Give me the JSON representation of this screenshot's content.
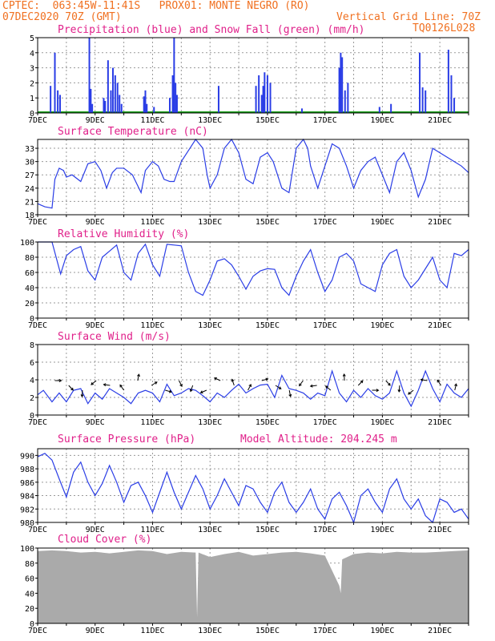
{
  "header": {
    "line1": "CPTEC:  063:45W-11:41S   PROX01: MONTE NEGRO (RO)",
    "line2_left": "07DEC2020 70Z (GMT)",
    "line2_right": "Vertical Grid Line: 70Z",
    "line3_right": "TQ0126L028"
  },
  "x_labels": [
    "7DEC",
    "9DEC",
    "11DEC",
    "13DEC",
    "15DEC",
    "17DEC",
    "19DEC",
    "21DEC"
  ],
  "chart_data": [
    {
      "type": "bar",
      "title": "Precipitation (blue) and Snow Fall (green) (mm/h)",
      "ylim": [
        0,
        5
      ],
      "yticks": [
        "0",
        "1",
        "2",
        "3",
        "4",
        "5"
      ],
      "colors": {
        "rain": "#2a3de6",
        "snow": "#18a018"
      },
      "series": [
        {
          "name": "Precipitation",
          "color": "#2a3de6",
          "points": [
            [
              0.45,
              1.8
            ],
            [
              0.6,
              4.0
            ],
            [
              0.7,
              1.5
            ],
            [
              0.78,
              1.2
            ],
            [
              1.8,
              5.0
            ],
            [
              1.85,
              1.6
            ],
            [
              1.9,
              0.6
            ],
            [
              2.3,
              1.0
            ],
            [
              2.35,
              0.8
            ],
            [
              2.45,
              3.5
            ],
            [
              2.55,
              1.5
            ],
            [
              2.62,
              3.0
            ],
            [
              2.7,
              2.5
            ],
            [
              2.78,
              2.0
            ],
            [
              2.85,
              1.2
            ],
            [
              2.92,
              0.6
            ],
            [
              3.7,
              1.1
            ],
            [
              3.75,
              1.5
            ],
            [
              3.8,
              0.6
            ],
            [
              4.05,
              0.4
            ],
            [
              4.6,
              1.0
            ],
            [
              4.7,
              2.5
            ],
            [
              4.75,
              5.0
            ],
            [
              4.8,
              2.0
            ],
            [
              4.85,
              1.2
            ],
            [
              6.3,
              1.8
            ],
            [
              7.6,
              1.8
            ],
            [
              7.7,
              2.5
            ],
            [
              7.8,
              1.2
            ],
            [
              7.85,
              1.8
            ],
            [
              7.9,
              2.7
            ],
            [
              8.0,
              2.5
            ],
            [
              8.1,
              2.0
            ],
            [
              9.2,
              0.3
            ],
            [
              10.5,
              3.0
            ],
            [
              10.55,
              4.0
            ],
            [
              10.6,
              3.7
            ],
            [
              10.7,
              1.5
            ],
            [
              10.8,
              2.0
            ],
            [
              11.9,
              0.4
            ],
            [
              12.3,
              0.6
            ],
            [
              13.3,
              4.0
            ],
            [
              13.4,
              1.7
            ],
            [
              13.5,
              1.5
            ],
            [
              14.3,
              4.2
            ],
            [
              14.4,
              2.5
            ],
            [
              14.5,
              1.0
            ]
          ]
        },
        {
          "name": "Snow Fall",
          "color": "#18a018",
          "points": []
        }
      ]
    },
    {
      "type": "line",
      "title": "Surface Temperature (nC)",
      "ylim": [
        18,
        35
      ],
      "yticks": [
        "18",
        "21",
        "24",
        "27",
        "30",
        "33"
      ],
      "color": "#2a3de6",
      "x": [
        0,
        0.25,
        0.5,
        0.6,
        0.75,
        0.9,
        1.0,
        1.2,
        1.5,
        1.75,
        2.0,
        2.2,
        2.4,
        2.6,
        2.75,
        3.0,
        3.3,
        3.6,
        3.75,
        4.0,
        4.2,
        4.4,
        4.6,
        4.75,
        5.0,
        5.3,
        5.5,
        5.75,
        5.9,
        6.0,
        6.25,
        6.5,
        6.75,
        7.0,
        7.25,
        7.5,
        7.75,
        8.0,
        8.2,
        8.5,
        8.75,
        9.0,
        9.25,
        9.4,
        9.5,
        9.75,
        10.0,
        10.25,
        10.5,
        10.75,
        11.0,
        11.25,
        11.5,
        11.75,
        12.0,
        12.25,
        12.5,
        12.75,
        13.0,
        13.25,
        13.5,
        13.75,
        14.0,
        14.25,
        14.5,
        14.75,
        15.0
      ],
      "y": [
        20.5,
        19.8,
        19.5,
        26,
        28.5,
        28,
        26.5,
        27,
        25.5,
        29.5,
        30,
        28,
        24,
        27.5,
        28.5,
        28.5,
        27,
        23,
        28,
        30,
        29,
        26,
        25.5,
        25.5,
        30,
        33,
        35,
        33,
        27,
        24,
        27,
        33,
        35,
        32,
        26,
        25,
        31,
        32,
        30,
        24,
        23,
        33,
        35,
        33,
        29,
        24,
        29,
        34,
        33,
        29,
        24,
        28,
        30,
        31,
        27,
        23,
        30,
        32,
        28,
        22,
        26,
        33,
        32,
        31,
        30,
        29,
        27.5
      ]
    },
    {
      "type": "line",
      "title": "Relative Humidity (%)",
      "ylim": [
        0,
        100
      ],
      "yticks": [
        "0",
        "20",
        "40",
        "60",
        "80",
        "100"
      ],
      "color": "#2a3de6",
      "x": [
        0,
        0.5,
        0.8,
        1.0,
        1.25,
        1.5,
        1.75,
        2.0,
        2.25,
        2.5,
        2.75,
        3.0,
        3.25,
        3.5,
        3.75,
        4.0,
        4.25,
        4.5,
        4.75,
        5.0,
        5.25,
        5.5,
        5.75,
        6.0,
        6.25,
        6.5,
        6.75,
        7.0,
        7.25,
        7.5,
        7.75,
        8.0,
        8.25,
        8.5,
        8.75,
        9.0,
        9.25,
        9.5,
        9.75,
        10.0,
        10.25,
        10.5,
        10.75,
        11.0,
        11.25,
        11.5,
        11.75,
        12.0,
        12.25,
        12.5,
        12.75,
        13.0,
        13.25,
        13.5,
        13.75,
        14.0,
        14.25,
        14.5,
        14.75,
        15.0
      ],
      "y": [
        100,
        100,
        58,
        82,
        90,
        94,
        62,
        50,
        80,
        88,
        96,
        60,
        50,
        85,
        97,
        70,
        55,
        97,
        96,
        95,
        60,
        35,
        30,
        50,
        75,
        78,
        70,
        55,
        38,
        55,
        62,
        65,
        64,
        40,
        30,
        55,
        75,
        90,
        60,
        35,
        50,
        80,
        85,
        75,
        45,
        40,
        35,
        70,
        85,
        90,
        55,
        40,
        50,
        65,
        80,
        50,
        40,
        85,
        82,
        90
      ]
    },
    {
      "type": "line",
      "title": "Surface Wind (m/s)",
      "ylim": [
        0,
        8
      ],
      "yticks": [
        "0",
        "2",
        "4",
        "6",
        "8"
      ],
      "color": "#2a3de6",
      "x": [
        0,
        0.2,
        0.5,
        0.75,
        1.0,
        1.25,
        1.5,
        1.75,
        2.0,
        2.25,
        2.5,
        2.75,
        3.0,
        3.25,
        3.5,
        3.75,
        4.0,
        4.25,
        4.5,
        4.75,
        5.0,
        5.25,
        5.5,
        5.75,
        6.0,
        6.25,
        6.5,
        6.75,
        7.0,
        7.25,
        7.5,
        7.75,
        8.0,
        8.25,
        8.5,
        8.75,
        9.0,
        9.25,
        9.5,
        9.75,
        10.0,
        10.25,
        10.5,
        10.75,
        11.0,
        11.25,
        11.5,
        11.75,
        12.0,
        12.25,
        12.5,
        12.75,
        13.0,
        13.25,
        13.5,
        13.75,
        14.0,
        14.25,
        14.5,
        14.75,
        15.0
      ],
      "y": [
        2.3,
        2.8,
        1.5,
        2.5,
        1.5,
        2.8,
        3.0,
        1.3,
        2.5,
        1.8,
        3.0,
        2.5,
        2.0,
        1.3,
        2.5,
        2.8,
        2.5,
        1.5,
        3.5,
        2.2,
        2.5,
        3.0,
        2.8,
        2.2,
        1.5,
        2.5,
        2.0,
        2.8,
        3.5,
        2.5,
        3.0,
        3.4,
        3.5,
        2.0,
        4.5,
        3.0,
        2.8,
        2.5,
        1.8,
        2.5,
        2.2,
        5.0,
        2.5,
        1.5,
        2.8,
        2.0,
        3.0,
        2.2,
        1.8,
        2.5,
        5.0,
        2.5,
        1.0,
        2.8,
        5.0,
        3.0,
        1.5,
        3.5,
        2.5,
        2.0,
        3.0
      ]
    },
    {
      "type": "line",
      "title": "Surface Pressure (hPa)",
      "ylim": [
        980,
        991
      ],
      "yticks": [
        "980",
        "982",
        "984",
        "986",
        "988",
        "990"
      ],
      "color": "#2a3de6",
      "x": [
        0,
        0.25,
        0.5,
        0.75,
        1.0,
        1.25,
        1.5,
        1.75,
        2.0,
        2.25,
        2.5,
        2.75,
        3.0,
        3.25,
        3.5,
        3.75,
        4.0,
        4.25,
        4.5,
        4.75,
        5.0,
        5.25,
        5.5,
        5.75,
        6.0,
        6.25,
        6.5,
        6.75,
        7.0,
        7.25,
        7.5,
        7.75,
        8.0,
        8.25,
        8.5,
        8.75,
        9.0,
        9.25,
        9.5,
        9.75,
        10.0,
        10.25,
        10.5,
        10.75,
        11.0,
        11.25,
        11.5,
        11.75,
        12.0,
        12.25,
        12.5,
        12.75,
        13.0,
        13.25,
        13.5,
        13.75,
        14.0,
        14.25,
        14.5,
        14.75,
        15.0
      ],
      "y": [
        989.8,
        990.3,
        989.3,
        986.5,
        983.8,
        987.5,
        989.0,
        986.0,
        984.0,
        985.8,
        988.5,
        986.0,
        983.0,
        985.5,
        986.0,
        984.0,
        981.5,
        984.5,
        987.5,
        984.5,
        982.0,
        984.5,
        987.0,
        985.0,
        982.0,
        984.0,
        986.5,
        984.5,
        982.5,
        985.5,
        985.0,
        983.0,
        981.5,
        984.5,
        986.0,
        983.0,
        981.5,
        983.0,
        985.0,
        982.0,
        980.5,
        983.5,
        984.5,
        982.5,
        980.0,
        984.0,
        985.0,
        983.0,
        981.5,
        985.0,
        986.5,
        983.5,
        982.0,
        983.5,
        981.0,
        980.0,
        983.5,
        983.0,
        981.5,
        982.0,
        980.5
      ]
    },
    {
      "type": "area",
      "title": "Cloud Cover (%)",
      "ylim": [
        0,
        100
      ],
      "yticks": [
        "0",
        "20",
        "40",
        "60",
        "80",
        "100"
      ],
      "color": "#aaaaaa",
      "x": [
        0,
        0.5,
        1.0,
        1.5,
        2.0,
        2.5,
        3.0,
        3.5,
        4.0,
        4.5,
        5.0,
        5.5,
        5.55,
        5.6,
        6.0,
        6.5,
        7.0,
        7.5,
        8.0,
        8.5,
        9.0,
        9.5,
        10.0,
        10.5,
        10.55,
        10.6,
        11.0,
        11.5,
        12.0,
        12.5,
        13.0,
        13.5,
        14.0,
        14.5,
        15.0
      ],
      "y": [
        96,
        97,
        96,
        94,
        95,
        93,
        95,
        97,
        96,
        92,
        95,
        94,
        8,
        94,
        88,
        92,
        95,
        90,
        92,
        94,
        95,
        93,
        90,
        50,
        40,
        85,
        92,
        94,
        93,
        95,
        94,
        94,
        95,
        96,
        97
      ]
    }
  ]
}
